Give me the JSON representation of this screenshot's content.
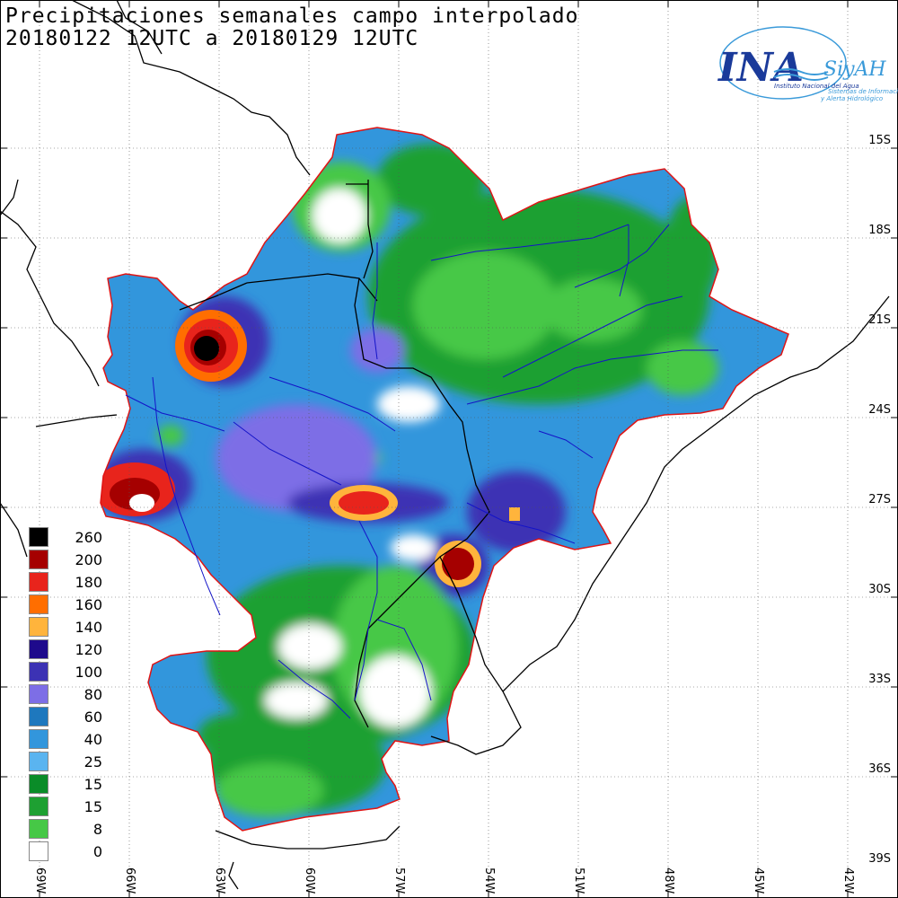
{
  "title": {
    "line1": "Precipitaciones semanales campo interpolado",
    "line2": "20180122 12UTC a 20180129 12UTC"
  },
  "logo": {
    "ina": "INA",
    "siyah": "SiyAH",
    "institute": "Instituto Nacional del Agua",
    "system_line1": "Sistemas de Información",
    "system_line2": "y Alerta Hidrológico"
  },
  "legend": [
    {
      "label": "260",
      "color": "#000000"
    },
    {
      "label": "200",
      "color": "#a50000"
    },
    {
      "label": "180",
      "color": "#e8241c"
    },
    {
      "label": "160",
      "color": "#ff6e00"
    },
    {
      "label": "140",
      "color": "#ffb43c"
    },
    {
      "label": "120",
      "color": "#1e0a8c"
    },
    {
      "label": "100",
      "color": "#3c32b4"
    },
    {
      "label": "80",
      "color": "#7d6ee6"
    },
    {
      "label": "60",
      "color": "#1e78be"
    },
    {
      "label": "40",
      "color": "#3296dc"
    },
    {
      "label": "25",
      "color": "#5ab4f0"
    },
    {
      "label": "15",
      "color": "#0a8c28"
    },
    {
      "label": "15",
      "color": "#1ea032"
    },
    {
      "label": "8",
      "color": "#46c846"
    },
    {
      "label": "0",
      "color": "#ffffff"
    }
  ],
  "lat_labels": [
    "15S",
    "18S",
    "21S",
    "24S",
    "27S",
    "30S",
    "33S",
    "36S",
    "39S"
  ],
  "lon_labels": [
    "69W",
    "66W",
    "63W",
    "60W",
    "57W",
    "54W",
    "51W",
    "48W",
    "45W",
    "42W"
  ],
  "colors": {
    "basin_outline": "#e01414",
    "rivers": "#1414c8",
    "borders": "#000000",
    "grid": "#444444"
  }
}
